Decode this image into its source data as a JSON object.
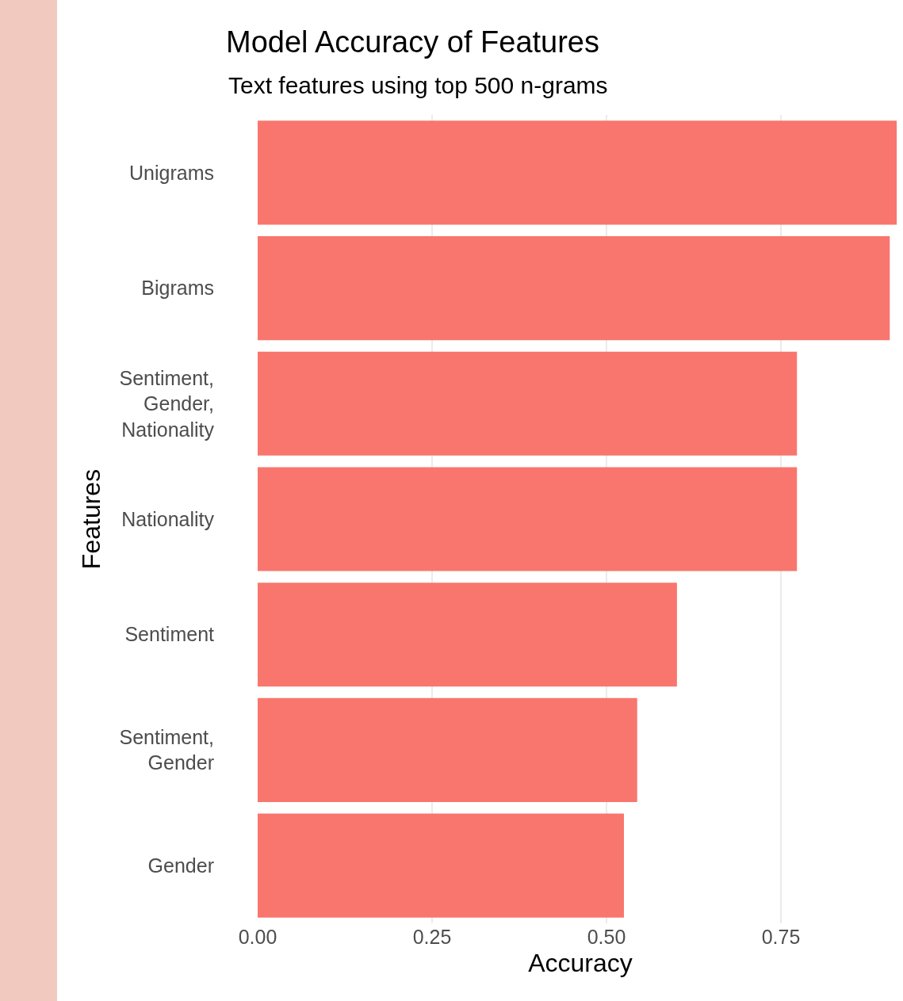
{
  "chart_data": {
    "type": "bar",
    "orientation": "horizontal",
    "title": "Model Accuracy of Features",
    "subtitle": "Text features using top 500 n-grams",
    "xlabel": "Accuracy",
    "ylabel": "Features",
    "categories": [
      "Unigrams",
      "Bigrams",
      "Sentiment,\nGender,\nNationality",
      "Nationality",
      "Sentiment",
      "Sentiment,\nGender",
      "Gender"
    ],
    "values": [
      0.916,
      0.906,
      0.773,
      0.773,
      0.601,
      0.544,
      0.525
    ],
    "color": "#f8766d",
    "xlim": [
      0,
      0.925
    ],
    "xticks": [
      {
        "value": 0,
        "label": "0.00"
      },
      {
        "value": 0.25,
        "label": "0.25"
      },
      {
        "value": 0.5,
        "label": "0.50"
      },
      {
        "value": 0.75,
        "label": "0.75"
      }
    ],
    "grid": "x",
    "legend": false
  }
}
